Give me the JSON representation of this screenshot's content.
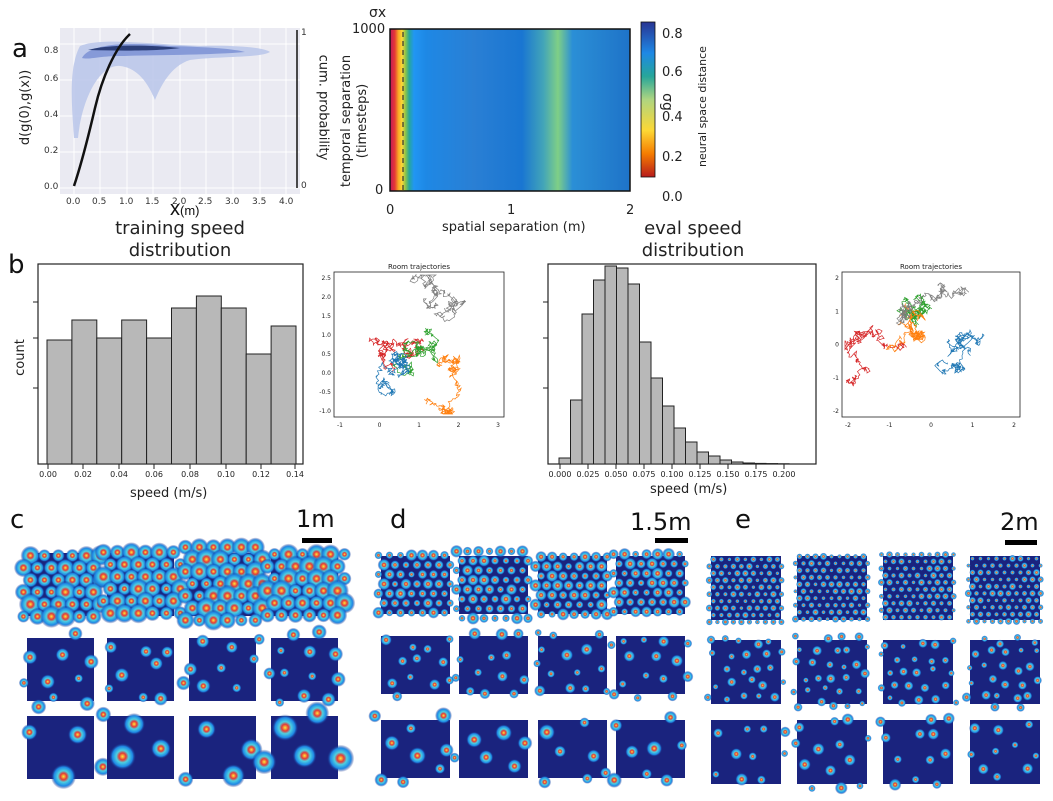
{
  "panels": {
    "a": "a",
    "b": "b",
    "c": "c",
    "d": "d",
    "e": "e"
  },
  "a_left": {
    "ylabel_left": "d(g(0),g(x))",
    "ylabel_right": "cum. probability",
    "xlabel_big": "x",
    "xlabel_unit": "(m)",
    "xticks": [
      "0.0",
      "0.5",
      "1.0",
      "1.5",
      "2.0",
      "2.5",
      "3.0",
      "3.5",
      "4.0"
    ],
    "yticks_left": [
      "0.0",
      "0.2",
      "0.4",
      "0.6",
      "0.8"
    ],
    "yticks_right": [
      "0",
      "1"
    ]
  },
  "a_right": {
    "sigma_x": "σx",
    "sigma_g": "σg",
    "ylabel_line1": "temporal separation",
    "ylabel_line2": "(timesteps)",
    "xlabel": "spatial separation (m)",
    "colorbar_label": "neural space distance",
    "yticks": [
      "0",
      "1000"
    ],
    "xticks": [
      "0",
      "1",
      "2"
    ],
    "cbar_ticks": [
      "0.0",
      "0.2",
      "0.4",
      "0.6",
      "0.8"
    ]
  },
  "b_left": {
    "title_line1": "training speed",
    "title_line2": "distribution",
    "ylabel": "count",
    "xlabel": "speed (m/s)"
  },
  "b_right": {
    "title_line1": "eval speed",
    "title_line2": "distribution",
    "xlabel": "speed (m/s)"
  },
  "traj1": {
    "title": "Room trajectories",
    "xticks": [
      "-1",
      "0",
      "1",
      "2",
      "3"
    ],
    "yticks": [
      "2.5",
      "2.0",
      "1.5",
      "1.0",
      "0.5",
      "0.0",
      "-0.5",
      "-1.0"
    ]
  },
  "traj2": {
    "title": "Room trajectories",
    "xticks": [
      "-2",
      "-1",
      "0",
      "1",
      "2"
    ],
    "yticks": [
      "2",
      "1",
      "0",
      "-1",
      "-2"
    ]
  },
  "scalebars": {
    "c": "1m",
    "d": "1.5m",
    "e": "2m"
  },
  "colors": {
    "hist_fill": "#b8b8b8",
    "hist_edge": "#222222",
    "map_bg": "#1a237e",
    "traj": [
      "#d62728",
      "#2ca02c",
      "#1f77b4",
      "#ff7f0e",
      "#7f7f7f"
    ]
  },
  "chart_data": [
    {
      "type": "bar",
      "title": "training speed distribution",
      "xlabel": "speed (m/s)",
      "ylabel": "count",
      "xticks": [
        "0.00",
        "0.02",
        "0.04",
        "0.06",
        "0.08",
        "0.10",
        "0.12",
        "0.14"
      ],
      "bins_start": 0.0,
      "bin_width": 0.0143,
      "values": [
        0.62,
        0.72,
        0.63,
        0.72,
        0.63,
        0.78,
        0.84,
        0.78,
        0.55,
        0.69
      ],
      "ylim": [
        0,
        1
      ]
    },
    {
      "type": "bar",
      "title": "eval speed distribution",
      "xlabel": "speed (m/s)",
      "xticks": [
        "0.000",
        "0.025",
        "0.050",
        "0.075",
        "0.100",
        "0.125",
        "0.150",
        "0.175",
        "0.200"
      ],
      "bins_start": 0.0,
      "bin_width": 0.01,
      "values": [
        0.03,
        0.32,
        0.75,
        0.92,
        0.99,
        0.98,
        0.9,
        0.61,
        0.43,
        0.29,
        0.18,
        0.11,
        0.06,
        0.04,
        0.02,
        0.01,
        0.005,
        0.003,
        0.002,
        0.001
      ],
      "ylim": [
        0,
        1
      ]
    },
    {
      "type": "heatmap",
      "xlabel": "spatial separation (m)",
      "ylabel": "temporal separation (timesteps)",
      "colorbar": "neural space distance",
      "xlim": [
        0,
        2
      ],
      "ylim": [
        0,
        1000
      ],
      "clim": [
        0.0,
        0.85
      ]
    }
  ]
}
